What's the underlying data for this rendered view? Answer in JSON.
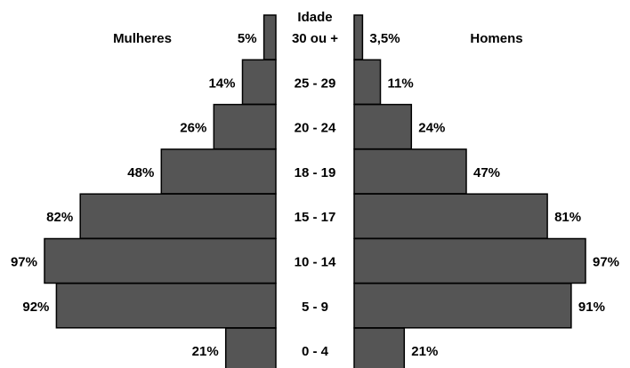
{
  "chart_data": {
    "type": "bar",
    "subtype": "population-pyramid",
    "axis_label": "Idade",
    "categories": [
      "30 ou +",
      "25 - 29",
      "20 - 24",
      "18 - 19",
      "15 - 17",
      "10 - 14",
      "5 - 9",
      "0 - 4"
    ],
    "series": [
      {
        "name": "Mulheres",
        "side": "left",
        "values": [
          5,
          14,
          26,
          48,
          82,
          97,
          92,
          21
        ],
        "value_labels": [
          "5%",
          "14%",
          "26%",
          "48%",
          "82%",
          "97%",
          "92%",
          "21%"
        ]
      },
      {
        "name": "Homens",
        "side": "right",
        "values": [
          3.5,
          11,
          24,
          47,
          81,
          97,
          91,
          21
        ],
        "value_labels": [
          "3,5%",
          "11%",
          "24%",
          "47%",
          "81%",
          "97%",
          "91%",
          "21%"
        ]
      }
    ],
    "value_unit": "%",
    "bar_color": "#555555",
    "bar_outline": "#000000",
    "legend_position": "top",
    "grid": false
  }
}
